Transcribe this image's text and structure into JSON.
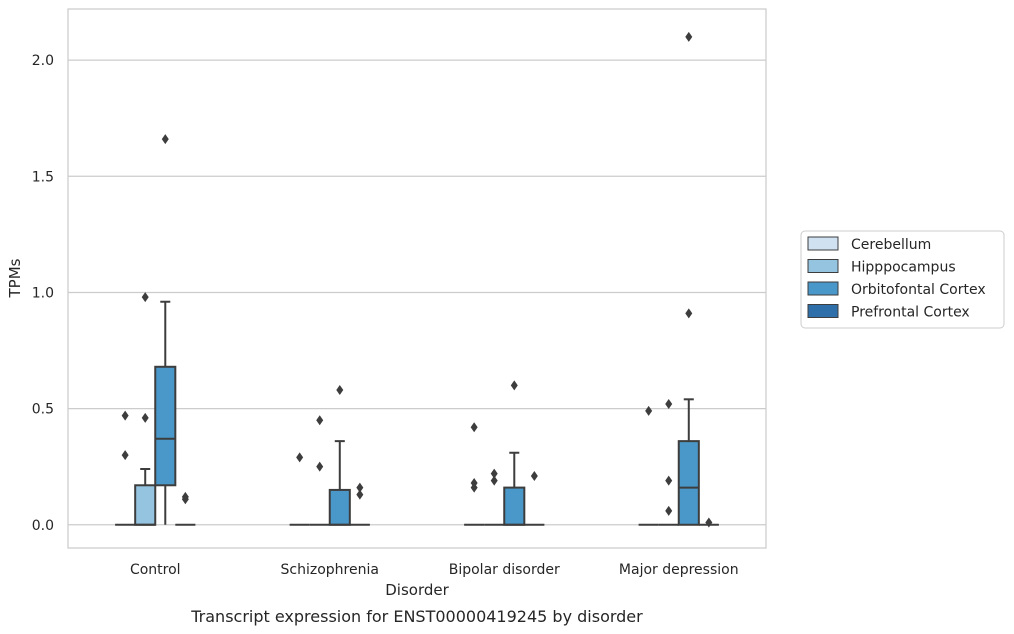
{
  "caption": "Transcript expression for ENST00000419245 by disorder",
  "chart_data": {
    "type": "box",
    "xlabel": "Disorder",
    "ylabel": "TPMs",
    "ylim": [
      -0.1,
      2.22
    ],
    "yticks": [
      "0.0",
      "0.5",
      "1.0",
      "1.5",
      "2.0"
    ],
    "grid": "horizontal",
    "legend_position": "right",
    "categories": [
      "Control",
      "Schizophrenia",
      "Bipolar disorder",
      "Major depression"
    ],
    "series": [
      {
        "name": "Cerebellum",
        "color": "#d0e1f2",
        "boxes": [
          {
            "min": 0,
            "q1": 0,
            "median": 0,
            "q3": 0,
            "max": 0,
            "outliers": [
              0.47,
              0.3
            ]
          },
          {
            "min": 0,
            "q1": 0,
            "median": 0,
            "q3": 0,
            "max": 0,
            "outliers": [
              0.29
            ]
          },
          {
            "min": 0,
            "q1": 0,
            "median": 0,
            "q3": 0,
            "max": 0,
            "outliers": [
              0.42,
              0.18,
              0.16
            ]
          },
          {
            "min": 0,
            "q1": 0,
            "median": 0,
            "q3": 0,
            "max": 0,
            "outliers": [
              0.49
            ]
          }
        ]
      },
      {
        "name": "Hipppocampus",
        "color": "#94c4df",
        "boxes": [
          {
            "min": 0,
            "q1": 0,
            "median": 0,
            "q3": 0.17,
            "max": 0.24,
            "outliers": [
              0.98,
              0.46
            ]
          },
          {
            "min": 0,
            "q1": 0,
            "median": 0,
            "q3": 0,
            "max": 0,
            "outliers": [
              0.45,
              0.25
            ]
          },
          {
            "min": 0,
            "q1": 0,
            "median": 0,
            "q3": 0,
            "max": 0,
            "outliers": [
              0.22,
              0.19
            ]
          },
          {
            "min": 0,
            "q1": 0,
            "median": 0,
            "q3": 0,
            "max": 0,
            "outliers": [
              0.52,
              0.19,
              0.06
            ]
          }
        ]
      },
      {
        "name": "Orbitofontal Cortex",
        "color": "#4a98c9",
        "boxes": [
          {
            "min": 0,
            "q1": 0.17,
            "median": 0.37,
            "q3": 0.68,
            "max": 0.96,
            "outliers": [
              1.66
            ]
          },
          {
            "min": 0,
            "q1": 0,
            "median": 0,
            "q3": 0.15,
            "max": 0.36,
            "outliers": [
              0.58
            ]
          },
          {
            "min": 0,
            "q1": 0,
            "median": 0,
            "q3": 0.16,
            "max": 0.31,
            "outliers": [
              0.6
            ]
          },
          {
            "min": 0,
            "q1": 0,
            "median": 0.16,
            "q3": 0.36,
            "max": 0.54,
            "outliers": [
              2.1,
              0.91
            ]
          }
        ]
      },
      {
        "name": "Prefrontal Cortex",
        "color": "#2e6ea9",
        "boxes": [
          {
            "min": 0,
            "q1": 0,
            "median": 0,
            "q3": 0,
            "max": 0,
            "outliers": [
              0.12,
              0.11
            ]
          },
          {
            "min": 0,
            "q1": 0,
            "median": 0,
            "q3": 0,
            "max": 0,
            "outliers": [
              0.16,
              0.13
            ]
          },
          {
            "min": 0,
            "q1": 0,
            "median": 0,
            "q3": 0,
            "max": 0,
            "outliers": [
              0.21
            ]
          },
          {
            "min": 0,
            "q1": 0,
            "median": 0,
            "q3": 0,
            "max": 0,
            "outliers": [
              0.01
            ]
          }
        ]
      }
    ]
  }
}
